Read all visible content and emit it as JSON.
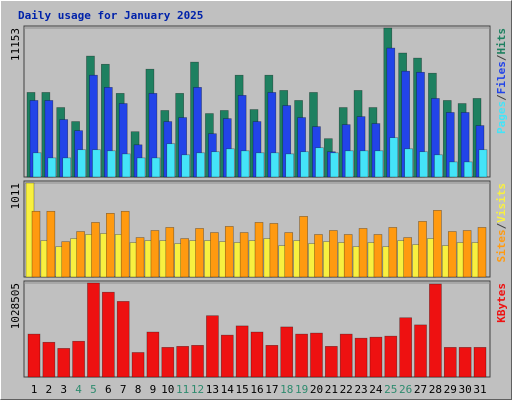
{
  "chart_data": [
    {
      "type": "bar",
      "title": "Daily usage for January 2025",
      "ylim": [
        0,
        11153
      ],
      "yticks": [
        11153
      ],
      "legend_separator": "/",
      "series": [
        {
          "name": "Hits",
          "color": "#1e8060",
          "values": [
            6330,
            6330,
            5200,
            4150,
            9050,
            8440,
            6260,
            3390,
            8070,
            4980,
            6260,
            8600,
            4750,
            4980,
            7620,
            5050,
            7620,
            6480,
            5730,
            6330,
            2870,
            5200,
            6480,
            5200,
            11153,
            9280,
            8900,
            7770,
            5730,
            5500,
            5880
          ]
        },
        {
          "name": "Files",
          "color": "#2244e8",
          "values": [
            5730,
            5730,
            4300,
            3470,
            7620,
            6710,
            5500,
            2410,
            6260,
            4150,
            4450,
            6710,
            3240,
            4370,
            6110,
            4150,
            6330,
            5350,
            4450,
            3770,
            1890,
            3920,
            4520,
            4000,
            9650,
            7920,
            7840,
            5880,
            4830,
            4830,
            3850
          ]
        },
        {
          "name": "Pages",
          "color": "#44e4f8",
          "values": [
            1810,
            1430,
            1430,
            2040,
            2040,
            1960,
            1730,
            1430,
            1430,
            2490,
            1660,
            1810,
            1890,
            2110,
            1960,
            1810,
            1810,
            1730,
            1890,
            2190,
            1810,
            1960,
            1960,
            1960,
            2940,
            2110,
            1890,
            1660,
            1130,
            1130,
            2040
          ]
        }
      ]
    },
    {
      "type": "bar",
      "ylim": [
        0,
        1011
      ],
      "yticks": [
        1011
      ],
      "legend_separator": "/",
      "series": [
        {
          "name": "Visits",
          "color": "#f8f040",
          "values": [
            1011,
            391,
            326,
            413,
            457,
            467,
            457,
            370,
            391,
            391,
            359,
            391,
            391,
            380,
            370,
            391,
            413,
            337,
            391,
            359,
            380,
            370,
            326,
            370,
            326,
            391,
            348,
            413,
            337,
            370,
            370
          ]
        },
        {
          "name": "Sites",
          "color": "#ff9a10",
          "values": [
            707,
            707,
            380,
            489,
            587,
            685,
            707,
            424,
            500,
            533,
            413,
            522,
            478,
            544,
            478,
            587,
            576,
            478,
            652,
            457,
            500,
            457,
            522,
            457,
            533,
            424,
            598,
            717,
            489,
            500,
            533
          ]
        }
      ]
    },
    {
      "type": "bar",
      "ylim": [
        0,
        1028505
      ],
      "yticks": [
        1028505
      ],
      "categories": [
        "1",
        "2",
        "3",
        "4",
        "5",
        "6",
        "7",
        "8",
        "9",
        "10",
        "11",
        "12",
        "13",
        "14",
        "15",
        "16",
        "17",
        "18",
        "19",
        "20",
        "21",
        "22",
        "23",
        "24",
        "25",
        "26",
        "27",
        "28",
        "29",
        "30",
        "31"
      ],
      "category_colors": [
        "#000",
        "#000",
        "#000",
        "#2e8b6e",
        "#2e8b6e",
        "#000",
        "#000",
        "#000",
        "#000",
        "#000",
        "#2e8b6e",
        "#2e8b6e",
        "#000",
        "#000",
        "#000",
        "#000",
        "#000",
        "#2e8b6e",
        "#2e8b6e",
        "#000",
        "#000",
        "#000",
        "#000",
        "#000",
        "#2e8b6e",
        "#2e8b6e",
        "#000",
        "#000",
        "#000",
        "#000",
        "#000"
      ],
      "series": [
        {
          "name": "KBytes",
          "color": "#ee1111",
          "values": [
            469500,
            380100,
            313000,
            391300,
            1028505,
            927900,
            827300,
            268300,
            491900,
            324200,
            335400,
            346600,
            670700,
            458300,
            559000,
            491900,
            346600,
            547800,
            469500,
            480700,
            335400,
            469500,
            424800,
            436000,
            447200,
            648400,
            570100,
            1017300,
            324200,
            324200,
            324200
          ]
        }
      ]
    }
  ]
}
